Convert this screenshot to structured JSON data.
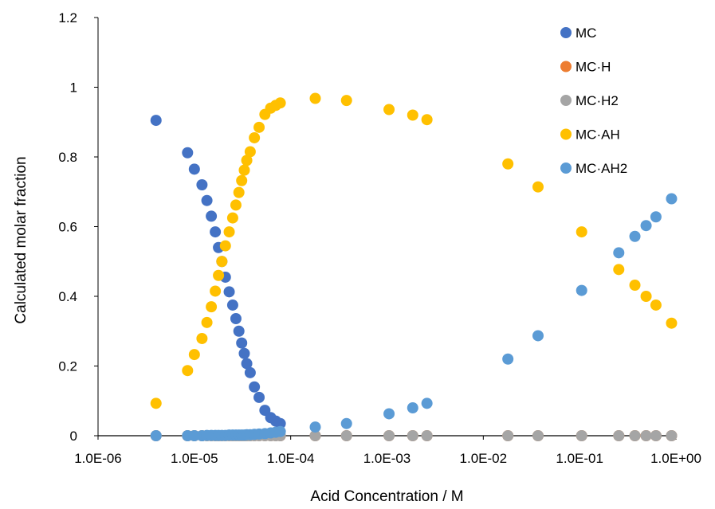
{
  "chart_data": {
    "type": "scatter",
    "title": "",
    "xlabel": "Acid Concentration / M",
    "ylabel": "Calculated molar fraction",
    "x_scale": "log",
    "xlim": [
      1e-06,
      1
    ],
    "ylim": [
      0,
      1.2
    ],
    "grid": false,
    "legend_position": "top-right",
    "x_tick_values": [
      1e-06,
      1e-05,
      0.0001,
      0.001,
      0.01,
      0.1,
      1
    ],
    "x_tick_labels": [
      "1.0E-06",
      "1.0E-05",
      "1.0E-04",
      "1.0E-03",
      "1.0E-02",
      "1.0E-01",
      "1.0E+00"
    ],
    "y_tick_values": [
      0,
      0.2,
      0.4,
      0.6,
      0.8,
      1,
      1.2
    ],
    "y_tick_labels": [
      "0",
      "0.2",
      "0.4",
      "0.6",
      "0.8",
      "1",
      "1.2"
    ],
    "x": [
      4e-06,
      8.5e-06,
      1e-05,
      1.2e-05,
      1.35e-05,
      1.5e-05,
      1.65e-05,
      1.78e-05,
      1.93e-05,
      2.1e-05,
      2.3e-05,
      2.5e-05,
      2.7e-05,
      2.9e-05,
      3.1e-05,
      3.3e-05,
      3.5e-05,
      3.8e-05,
      4.2e-05,
      4.7e-05,
      5.4e-05,
      6.2e-05,
      7e-05,
      7.8e-05,
      0.00018,
      0.00038,
      0.00105,
      0.00185,
      0.0026,
      0.018,
      0.037,
      0.105,
      0.255,
      0.375,
      0.49,
      0.62,
      0.9
    ],
    "series": [
      {
        "name": "MC",
        "color": "#4472C4",
        "values": [
          0.905,
          0.812,
          0.765,
          0.72,
          0.675,
          0.63,
          0.585,
          0.54,
          0.5,
          0.455,
          0.413,
          0.375,
          0.336,
          0.3,
          0.266,
          0.236,
          0.207,
          0.181,
          0.14,
          0.11,
          0.073,
          0.052,
          0.042,
          0.035,
          null,
          null,
          null,
          null,
          null,
          null,
          null,
          null,
          null,
          null,
          null,
          null,
          null
        ]
      },
      {
        "name": "MC·H",
        "color": "#ED7D31",
        "values": [
          0,
          0,
          0,
          0,
          0,
          0,
          0,
          0,
          0,
          0,
          0,
          0,
          0,
          0,
          0,
          0,
          0,
          0,
          0,
          0,
          0,
          0,
          0,
          0,
          0,
          0,
          0,
          0,
          0,
          0,
          0,
          0,
          0,
          0,
          0,
          0,
          0
        ]
      },
      {
        "name": "MC·H2",
        "color": "#A5A5A5",
        "values": [
          0,
          0,
          0,
          0,
          0,
          0,
          0,
          0,
          0,
          0,
          0,
          0,
          0,
          0,
          0,
          0,
          0,
          0,
          0,
          0,
          0,
          0,
          0,
          0,
          0,
          0,
          0,
          0,
          0,
          0,
          0,
          0,
          0,
          0,
          0,
          0,
          0
        ]
      },
      {
        "name": "MC·AH",
        "color": "#FFC000",
        "values": [
          0.093,
          0.187,
          0.233,
          0.279,
          0.325,
          0.37,
          0.415,
          0.46,
          0.5,
          0.545,
          0.585,
          0.625,
          0.662,
          0.698,
          0.732,
          0.762,
          0.79,
          0.815,
          0.855,
          0.885,
          0.922,
          0.94,
          0.948,
          0.955,
          0.968,
          0.962,
          0.936,
          0.92,
          0.907,
          0.78,
          0.714,
          0.585,
          0.477,
          0.432,
          0.4,
          0.375,
          0.323
        ]
      },
      {
        "name": "MC·AH2",
        "color": "#5B9BD5",
        "values": [
          0,
          0,
          0,
          0,
          0.001,
          0.001,
          0.001,
          0.001,
          0.001,
          0.001,
          0.002,
          0.002,
          0.002,
          0.002,
          0.002,
          0.002,
          0.003,
          0.003,
          0.004,
          0.005,
          0.006,
          0.008,
          0.01,
          0.012,
          0.025,
          0.035,
          0.063,
          0.08,
          0.093,
          0.22,
          0.287,
          0.417,
          0.525,
          0.572,
          0.603,
          0.628,
          0.68
        ]
      }
    ]
  }
}
